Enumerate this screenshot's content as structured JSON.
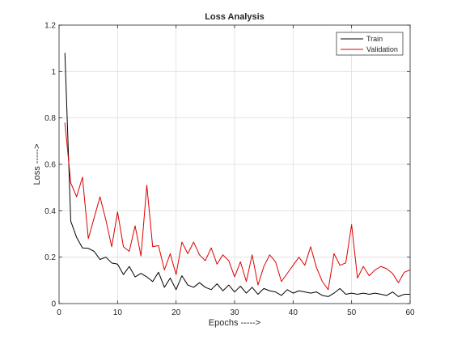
{
  "chart_data": {
    "type": "line",
    "title": "Loss Analysis",
    "xlabel": "Epochs ----->",
    "ylabel": "Loss ----->",
    "xlim": [
      0,
      60
    ],
    "ylim": [
      0,
      1.2
    ],
    "xticks": [
      0,
      10,
      20,
      30,
      40,
      50,
      60
    ],
    "yticks": [
      0,
      0.2,
      0.4,
      0.6,
      0.8,
      1,
      1.2
    ],
    "x_tick_labels": [
      "0",
      "10",
      "20",
      "30",
      "40",
      "50",
      "60"
    ],
    "y_tick_labels": [
      "0",
      "0.2",
      "0.4",
      "0.6",
      "0.8",
      "1",
      "1.2"
    ],
    "grid": true,
    "legend_position": "top-right",
    "x": [
      1,
      2,
      3,
      4,
      5,
      6,
      7,
      8,
      9,
      10,
      11,
      12,
      13,
      14,
      15,
      16,
      17,
      18,
      19,
      20,
      21,
      22,
      23,
      24,
      25,
      26,
      27,
      28,
      29,
      30,
      31,
      32,
      33,
      34,
      35,
      36,
      37,
      38,
      39,
      40,
      41,
      42,
      43,
      44,
      45,
      46,
      47,
      48,
      49,
      50,
      51,
      52,
      53,
      54,
      55,
      56,
      57,
      58,
      59,
      60
    ],
    "series": [
      {
        "name": "Train",
        "color": "#000000",
        "values": [
          1.08,
          0.355,
          0.285,
          0.24,
          0.238,
          0.225,
          0.19,
          0.2,
          0.175,
          0.17,
          0.125,
          0.16,
          0.115,
          0.13,
          0.115,
          0.095,
          0.135,
          0.07,
          0.11,
          0.06,
          0.12,
          0.08,
          0.07,
          0.09,
          0.07,
          0.06,
          0.085,
          0.055,
          0.08,
          0.05,
          0.075,
          0.045,
          0.07,
          0.04,
          0.065,
          0.055,
          0.05,
          0.035,
          0.06,
          0.045,
          0.055,
          0.05,
          0.045,
          0.05,
          0.035,
          0.03,
          0.045,
          0.065,
          0.04,
          0.045,
          0.04,
          0.045,
          0.04,
          0.045,
          0.04,
          0.035,
          0.05,
          0.03,
          0.04,
          0.04
        ]
      },
      {
        "name": "Validation",
        "color": "#dd0000",
        "values": [
          0.78,
          0.52,
          0.46,
          0.545,
          0.28,
          0.37,
          0.46,
          0.36,
          0.245,
          0.395,
          0.245,
          0.225,
          0.335,
          0.205,
          0.51,
          0.245,
          0.25,
          0.145,
          0.215,
          0.125,
          0.265,
          0.215,
          0.265,
          0.21,
          0.185,
          0.24,
          0.17,
          0.21,
          0.185,
          0.115,
          0.18,
          0.095,
          0.21,
          0.08,
          0.16,
          0.21,
          0.18,
          0.095,
          0.13,
          0.165,
          0.2,
          0.165,
          0.245,
          0.155,
          0.095,
          0.06,
          0.215,
          0.165,
          0.175,
          0.34,
          0.11,
          0.16,
          0.12,
          0.145,
          0.16,
          0.15,
          0.13,
          0.09,
          0.135,
          0.145
        ]
      }
    ]
  }
}
